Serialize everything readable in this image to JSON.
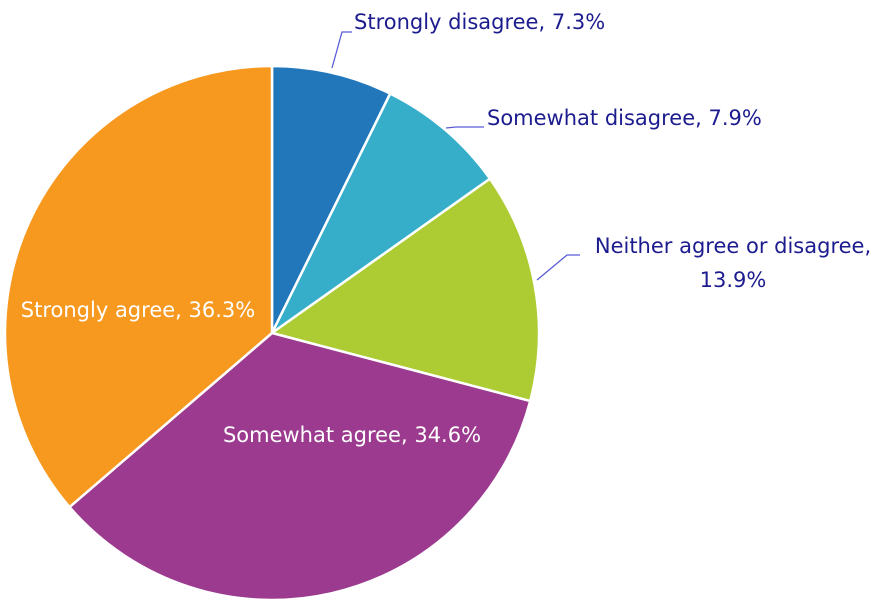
{
  "chart_data": {
    "type": "pie",
    "values": [
      7.3,
      7.9,
      13.9,
      34.6,
      36.3
    ],
    "value_labels": [
      "Strongly disagree, 7.3%",
      "Somewhat disagree, 7.9%",
      "Neither agree or disagree, 13.9%",
      "Somewhat agree, 34.6%",
      "Strongly agree, 36.3%"
    ],
    "colors": [
      "#2277bb",
      "#36aec9",
      "#adcb33",
      "#9b3a8e",
      "#f7981f"
    ]
  }
}
